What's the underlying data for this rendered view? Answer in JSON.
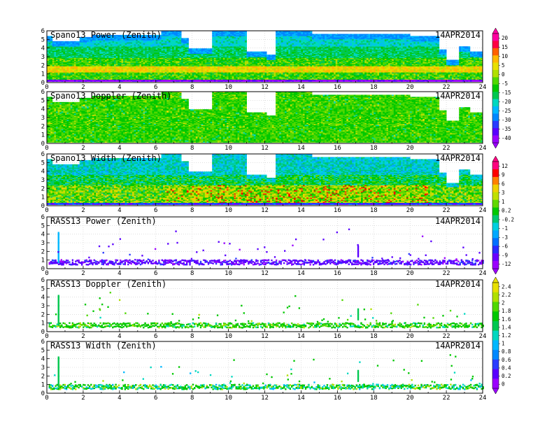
{
  "date_label": "14APR2014",
  "colors": {
    "profiler_scale": [
      "#9b00ff",
      "#5a00ff",
      "#2a3cff",
      "#0088ff",
      "#00b8ff",
      "#00d8c0",
      "#00c850",
      "#00c800",
      "#50d800",
      "#b0e000",
      "#e8e000",
      "#ffb800",
      "#ff6000",
      "#ff0044",
      "#ff00a0"
    ],
    "width_scale": [
      "#9b00ff",
      "#6a00ff",
      "#2a2aff",
      "#0070ff",
      "#00a8ff",
      "#00d0e0",
      "#00c870",
      "#00c800",
      "#60d800",
      "#c0e000",
      "#f0d000",
      "#ff8000",
      "#ff0000",
      "#ff0080"
    ]
  },
  "colorbars": [
    {
      "labels": [
        "20",
        "15",
        "10",
        "5",
        "0",
        "-5",
        "-15",
        "-20",
        "-25",
        "-30",
        "-35",
        "-40"
      ]
    },
    {
      "labels": [
        "12",
        "9",
        "6",
        "3",
        "1",
        "0.2",
        "-0.2",
        "-1",
        "-3",
        "-6",
        "-9",
        "-12"
      ]
    },
    {
      "labels": [
        "2.4",
        "2.2",
        "2",
        "1.8",
        "1.6",
        "1.4",
        "1.2",
        "1",
        "0.8",
        "0.6",
        "0.4",
        "0.2",
        "0"
      ]
    }
  ],
  "chart_data": [
    {
      "type": "heatmap",
      "title": "Spano13 Power (Zenith)",
      "date": "14APR2014",
      "x_range": [
        0,
        24
      ],
      "y_range": [
        0,
        6
      ],
      "x_ticks": [
        "0",
        "2",
        "4",
        "6",
        "8",
        "10",
        "12",
        "14",
        "16",
        "18",
        "20",
        "22",
        "24"
      ],
      "y_ticks": [
        "0",
        "1",
        "2",
        "3",
        "4",
        "5",
        "6"
      ],
      "kind": "profiler_power",
      "colorbar": 0
    },
    {
      "type": "heatmap",
      "title": "Spano13 Doppler (Zenith)",
      "date": "14APR2014",
      "x_range": [
        0,
        24
      ],
      "y_range": [
        0,
        6
      ],
      "x_ticks": [
        "0",
        "2",
        "4",
        "6",
        "8",
        "10",
        "12",
        "14",
        "16",
        "18",
        "20",
        "22",
        "24"
      ],
      "y_ticks": [
        "0",
        "1",
        "2",
        "3",
        "4",
        "5",
        "6"
      ],
      "kind": "profiler_doppler",
      "colorbar": 0
    },
    {
      "type": "heatmap",
      "title": "Spano13 Width (Zenith)",
      "date": "14APR2014",
      "x_range": [
        0,
        24
      ],
      "y_range": [
        0,
        6
      ],
      "x_ticks": [
        "0",
        "2",
        "4",
        "6",
        "8",
        "10",
        "12",
        "14",
        "16",
        "18",
        "20",
        "22",
        "24"
      ],
      "y_ticks": [
        "0",
        "1",
        "2",
        "3",
        "4",
        "5",
        "6"
      ],
      "kind": "profiler_width",
      "colorbar": 1
    },
    {
      "type": "heatmap",
      "title": "RASS13 Power (Zenith)",
      "date": "14APR2014",
      "x_range": [
        0,
        24
      ],
      "y_range": [
        0,
        6
      ],
      "x_ticks": [
        "0",
        "2",
        "4",
        "6",
        "8",
        "10",
        "12",
        "14",
        "16",
        "18",
        "20",
        "22",
        "24"
      ],
      "y_ticks": [
        "0",
        "1",
        "2",
        "3",
        "4",
        "5",
        "6"
      ],
      "kind": "rass_power",
      "colorbar": 1
    },
    {
      "type": "heatmap",
      "title": "RASS13 Doppler (Zenith)",
      "date": "14APR2014",
      "x_range": [
        0,
        24
      ],
      "y_range": [
        0,
        6
      ],
      "x_ticks": [
        "0",
        "2",
        "4",
        "6",
        "8",
        "10",
        "12",
        "14",
        "16",
        "18",
        "20",
        "22",
        "24"
      ],
      "y_ticks": [
        "0",
        "1",
        "2",
        "3",
        "4",
        "5",
        "6"
      ],
      "kind": "rass_doppler",
      "colorbar": 2
    },
    {
      "type": "heatmap",
      "title": "RASS13 Width (Zenith)",
      "date": "14APR2014",
      "x_range": [
        0,
        24
      ],
      "y_range": [
        0,
        6
      ],
      "x_ticks": [
        "0",
        "2",
        "4",
        "6",
        "8",
        "10",
        "12",
        "14",
        "16",
        "18",
        "20",
        "22",
        "24"
      ],
      "y_ticks": [
        "0",
        "1",
        "2",
        "3",
        "4",
        "5",
        "6"
      ],
      "kind": "rass_width",
      "colorbar": 2
    }
  ]
}
